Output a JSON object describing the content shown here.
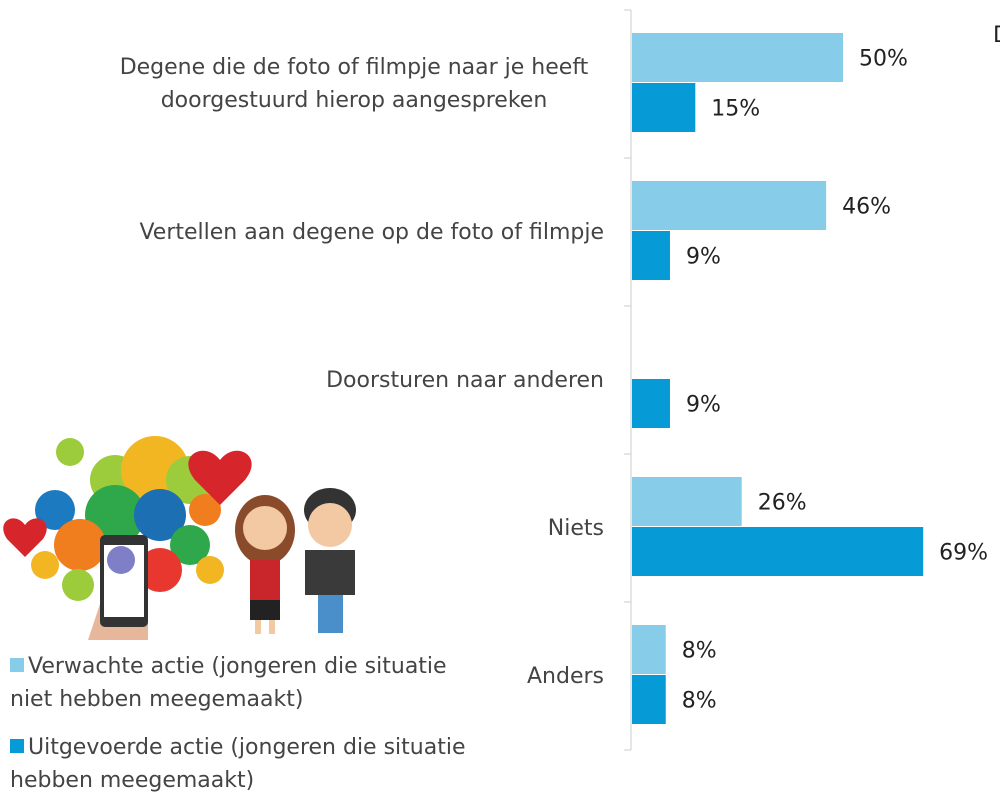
{
  "chart_data": {
    "type": "bar",
    "orientation": "horizontal",
    "categories": [
      "Degene die de foto of filmpje naar je heeft doorgestuurd hierop aangespreken",
      "Vertellen aan degene op de foto of filmpje",
      "Doorsturen naar anderen",
      "Niets",
      "Anders"
    ],
    "series": [
      {
        "name": "Verwachte actie (jongeren die situatie niet hebben meegemaakt)",
        "color": "#87cdea",
        "values": [
          50,
          46,
          null,
          26,
          8
        ],
        "value_labels": [
          "50%",
          "46%",
          null,
          "26%",
          "8%"
        ]
      },
      {
        "name": "Uitgevoerde actie (jongeren die situatie hebben meegemaakt)",
        "color": "#069bd6",
        "values": [
          15,
          9,
          9,
          69,
          8
        ],
        "value_labels": [
          "15%",
          "9%",
          "9%",
          "69%",
          "8%"
        ]
      }
    ],
    "annotation": "D"
  }
}
